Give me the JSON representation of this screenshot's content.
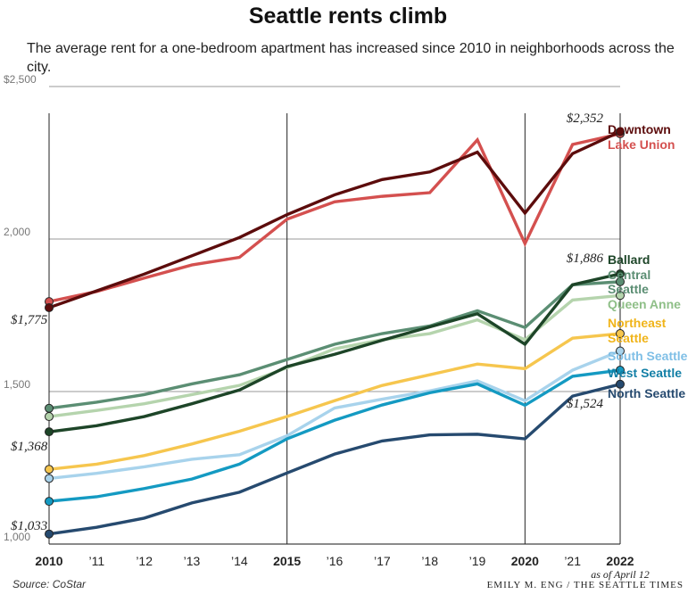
{
  "header": {
    "title": "Seattle rents climb",
    "subtitle": "The average rent for a one-bedroom apartment has increased since 2010 in neighborhoods across the city."
  },
  "footer": {
    "source": "Source: CoStar",
    "credit": "EMILY M. ENG / THE SEATTLE TIMES"
  },
  "chart_data": {
    "type": "line",
    "title": "Seattle rents climb",
    "xlabel": "",
    "ylabel": "",
    "x": [
      2010,
      2011,
      2012,
      2013,
      2014,
      2015,
      2016,
      2017,
      2018,
      2019,
      2020,
      2021,
      2022
    ],
    "x_tick_labels": [
      "2010",
      "’11",
      "’12",
      "’13",
      "’14",
      "2015",
      "’16",
      "’17",
      "’18",
      "’19",
      "2020",
      "’21",
      "2022"
    ],
    "bold_ticks": [
      "2010",
      "2015",
      "2020",
      "2022"
    ],
    "x_note": "as of April 12",
    "ylim": [
      1000,
      2500
    ],
    "y_ticks": [
      1000,
      1500,
      2000,
      2500
    ],
    "y_tick_labels": [
      "1,000",
      "1,500",
      "2,000",
      "$2,500"
    ],
    "gridlines": true,
    "vertical_reference_lines": [
      2010,
      2015,
      2020,
      2022
    ],
    "series": [
      {
        "name": "Lake Union",
        "color": "#d4504f",
        "values": [
          1795,
          1828,
          1872,
          1915,
          1940,
          2065,
          2122,
          2140,
          2152,
          2325,
          1985,
          2310,
          2345
        ]
      },
      {
        "name": "Queen Anne",
        "color": "#b5d4ad",
        "values": [
          1418,
          1438,
          1460,
          1490,
          1520,
          1578,
          1640,
          1670,
          1690,
          1735,
          1670,
          1800,
          1815
        ]
      },
      {
        "name": "Central Seattle",
        "color": "#5b8e73",
        "values": [
          1445,
          1465,
          1490,
          1525,
          1555,
          1605,
          1655,
          1690,
          1715,
          1765,
          1710,
          1850,
          1860
        ]
      },
      {
        "name": "Northeast Seattle",
        "color": "#f6c64e",
        "values": [
          1245,
          1262,
          1290,
          1328,
          1370,
          1418,
          1470,
          1520,
          1555,
          1590,
          1575,
          1675,
          1690
        ]
      },
      {
        "name": "South Seattle",
        "color": "#a8d3ec",
        "values": [
          1215,
          1232,
          1253,
          1278,
          1293,
          1355,
          1446,
          1475,
          1502,
          1535,
          1470,
          1570,
          1633
        ]
      },
      {
        "name": "West Seattle",
        "color": "#149ac2",
        "values": [
          1140,
          1155,
          1182,
          1213,
          1262,
          1345,
          1406,
          1456,
          1496,
          1525,
          1455,
          1550,
          1570
        ]
      },
      {
        "name": "North Seattle",
        "color": "#264a6f",
        "values": [
          1033,
          1055,
          1085,
          1135,
          1170,
          1233,
          1295,
          1338,
          1358,
          1360,
          1345,
          1485,
          1524
        ]
      },
      {
        "name": "Ballard",
        "color": "#1d4528",
        "values": [
          1368,
          1388,
          1418,
          1460,
          1505,
          1582,
          1622,
          1668,
          1712,
          1755,
          1655,
          1850,
          1886
        ]
      },
      {
        "name": "Downtown",
        "color": "#5c0c0c",
        "values": [
          1775,
          1830,
          1885,
          1945,
          2005,
          2080,
          2145,
          2195,
          2220,
          2285,
          2085,
          2280,
          2352
        ]
      }
    ],
    "value_labels": [
      {
        "series": "Downtown",
        "year": 2010,
        "text": "$1,775"
      },
      {
        "series": "Ballard",
        "year": 2010,
        "text": "$1,368"
      },
      {
        "series": "North Seattle",
        "year": 2010,
        "text": "$1,033"
      },
      {
        "series": "Downtown",
        "year": 2022,
        "text": "$2,352"
      },
      {
        "series": "Ballard",
        "year": 2022,
        "text": "$1,886"
      },
      {
        "series": "North Seattle",
        "year": 2022,
        "text": "$1,524"
      }
    ],
    "series_labels": [
      {
        "text": "Downtown",
        "color": "#5c0c0c"
      },
      {
        "text": "Lake Union",
        "color": "#d4504f"
      },
      {
        "text": "Ballard",
        "color": "#1d4528"
      },
      {
        "text": "Central",
        "color": "#5b8e73"
      },
      {
        "text": "Seattle",
        "color": "#5b8e73"
      },
      {
        "text": "Queen Anne",
        "color": "#8fbf88"
      },
      {
        "text": "Northeast",
        "color": "#f0b41a"
      },
      {
        "text": "Seattle",
        "color": "#f0b41a"
      },
      {
        "text": "South Seattle",
        "color": "#7fbfe6"
      },
      {
        "text": "West Seattle",
        "color": "#127fa6"
      },
      {
        "text": "North Seattle",
        "color": "#264a6f"
      }
    ]
  }
}
